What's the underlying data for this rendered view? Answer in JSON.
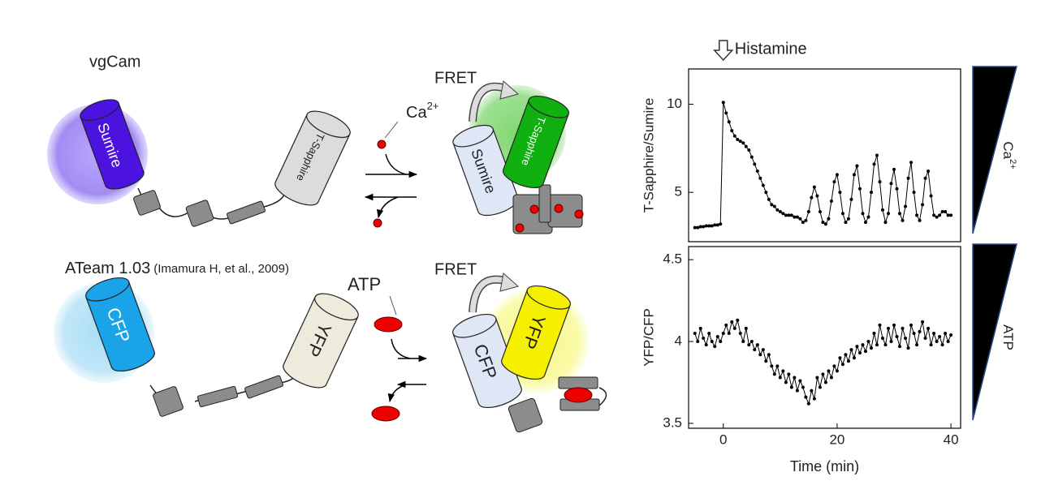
{
  "diagram": {
    "top_title": "vgCam",
    "sumire": "Sumire",
    "t_sapphire": "T-Sapphire",
    "fret_top": "FRET",
    "ion": {
      "base": "Ca",
      "sup": "2+"
    },
    "sumire_bound": "Sumire",
    "t_sapphire_bound": "T-Sapphire",
    "bottom_title": "ATeam 1.03",
    "citation": "(Imamura H, et al., 2009)",
    "atp": "ATP",
    "fret_bottom": "FRET",
    "cfp": "CFP",
    "yfp": "YFP",
    "cfp_bound": "CFP",
    "yfp_bound": "YFP"
  },
  "chart_data": [
    {
      "type": "line",
      "ylabel": "T-Sapphire/Sumire",
      "side_label": {
        "base": "Ca",
        "sup": "2+"
      },
      "annotation": {
        "text": "Histamine",
        "x": 0
      },
      "color": "#000000",
      "xlim": [
        -6.1,
        41.7
      ],
      "ylim": [
        2.2,
        12.0
      ],
      "yticks": [
        5,
        10
      ],
      "x": [
        -5,
        -4.5,
        -4,
        -3.5,
        -3,
        -2.5,
        -2,
        -1.5,
        -1,
        -0.5,
        0,
        0.5,
        1,
        1.5,
        2,
        2.5,
        3,
        3.5,
        4,
        4.5,
        5,
        5.5,
        6,
        6.5,
        7,
        7.5,
        8,
        8.5,
        9,
        9.5,
        10,
        10.5,
        11,
        11.5,
        12,
        12.5,
        13,
        13.5,
        14,
        14.5,
        15,
        15.5,
        16,
        16.5,
        17,
        17.5,
        18,
        18.5,
        19,
        19.5,
        20,
        20.5,
        21,
        21.5,
        22,
        22.5,
        23,
        23.5,
        24,
        24.5,
        25,
        25.5,
        26,
        26.5,
        27,
        27.5,
        28,
        28.5,
        29,
        29.5,
        30,
        30.5,
        31,
        31.5,
        32,
        32.5,
        33,
        33.5,
        34,
        34.5,
        35,
        35.5,
        36,
        36.5,
        37,
        37.5,
        38,
        38.5,
        39,
        39.5,
        40
      ],
      "values": [
        3.0,
        3.0,
        3.05,
        3.05,
        3.1,
        3.1,
        3.1,
        3.15,
        3.15,
        3.2,
        10.1,
        9.5,
        9.0,
        8.5,
        8.2,
        8.0,
        7.9,
        7.8,
        7.6,
        7.4,
        7.0,
        6.6,
        6.2,
        5.8,
        5.4,
        5.0,
        4.6,
        4.3,
        4.2,
        4.0,
        3.9,
        3.8,
        3.7,
        3.7,
        3.7,
        3.6,
        3.6,
        3.5,
        3.3,
        3.4,
        3.9,
        4.7,
        5.3,
        4.8,
        3.9,
        3.3,
        3.2,
        3.5,
        4.5,
        5.6,
        6.0,
        5.0,
        3.8,
        3.3,
        3.5,
        4.6,
        6.0,
        6.5,
        5.2,
        3.8,
        3.3,
        3.6,
        5.0,
        6.6,
        7.1,
        5.6,
        4.0,
        3.3,
        3.8,
        5.5,
        6.3,
        5.2,
        3.8,
        3.4,
        4.2,
        5.8,
        6.7,
        5.0,
        3.7,
        3.4,
        4.3,
        5.8,
        6.2,
        4.8,
        3.7,
        3.6,
        3.7,
        3.9,
        3.9,
        3.7,
        3.7
      ]
    },
    {
      "type": "line",
      "ylabel": "YFP/CFP",
      "xlabel": "Time (min)",
      "side_label": {
        "base": "ATP"
      },
      "color": "#000000",
      "xlim": [
        -6.1,
        41.7
      ],
      "ylim": [
        3.47,
        4.58
      ],
      "xticks": [
        0,
        20,
        40
      ],
      "yticks": [
        {
          "value": 3.5,
          "label": "3.5"
        },
        4,
        {
          "value": 4.5,
          "label": "4.5"
        }
      ],
      "x": [
        -5,
        -4.5,
        -4,
        -3.5,
        -3,
        -2.5,
        -2,
        -1.5,
        -1,
        -0.5,
        0,
        0.5,
        1,
        1.5,
        2,
        2.5,
        3,
        3.5,
        4,
        4.5,
        5,
        5.5,
        6,
        6.5,
        7,
        7.5,
        8,
        8.5,
        9,
        9.5,
        10,
        10.5,
        11,
        11.5,
        12,
        12.5,
        13,
        13.5,
        14,
        14.5,
        15,
        15.5,
        16,
        16.5,
        17,
        17.5,
        18,
        18.5,
        19,
        19.5,
        20,
        20.5,
        21,
        21.5,
        22,
        22.5,
        23,
        23.5,
        24,
        24.5,
        25,
        25.5,
        26,
        26.5,
        27,
        27.5,
        28,
        28.5,
        29,
        29.5,
        30,
        30.5,
        31,
        31.5,
        32,
        32.5,
        33,
        33.5,
        34,
        34.5,
        35,
        35.5,
        36,
        36.5,
        37,
        37.5,
        38,
        38.5,
        39,
        39.5,
        40
      ],
      "values": [
        4.05,
        4.0,
        4.08,
        4.02,
        3.98,
        4.05,
        4.0,
        3.97,
        4.03,
        4.0,
        4.05,
        4.1,
        4.05,
        4.12,
        4.08,
        4.13,
        4.05,
        4.0,
        4.08,
        3.98,
        4.0,
        3.95,
        3.98,
        3.92,
        3.95,
        3.88,
        3.92,
        3.85,
        3.8,
        3.85,
        3.78,
        3.82,
        3.75,
        3.8,
        3.72,
        3.78,
        3.7,
        3.76,
        3.72,
        3.66,
        3.62,
        3.7,
        3.65,
        3.78,
        3.72,
        3.8,
        3.75,
        3.82,
        3.78,
        3.85,
        3.82,
        3.9,
        3.86,
        3.92,
        3.88,
        3.95,
        3.9,
        3.97,
        3.93,
        3.98,
        3.94,
        4.0,
        3.96,
        4.05,
        3.98,
        4.1,
        4.02,
        3.98,
        4.08,
        4.0,
        4.1,
        4.03,
        3.97,
        4.08,
        4.02,
        3.96,
        4.1,
        4.05,
        3.98,
        4.06,
        4.12,
        4.02,
        4.08,
        3.98,
        4.05,
        4.0,
        4.03,
        3.98,
        4.05,
        4.0,
        4.04
      ]
    }
  ]
}
